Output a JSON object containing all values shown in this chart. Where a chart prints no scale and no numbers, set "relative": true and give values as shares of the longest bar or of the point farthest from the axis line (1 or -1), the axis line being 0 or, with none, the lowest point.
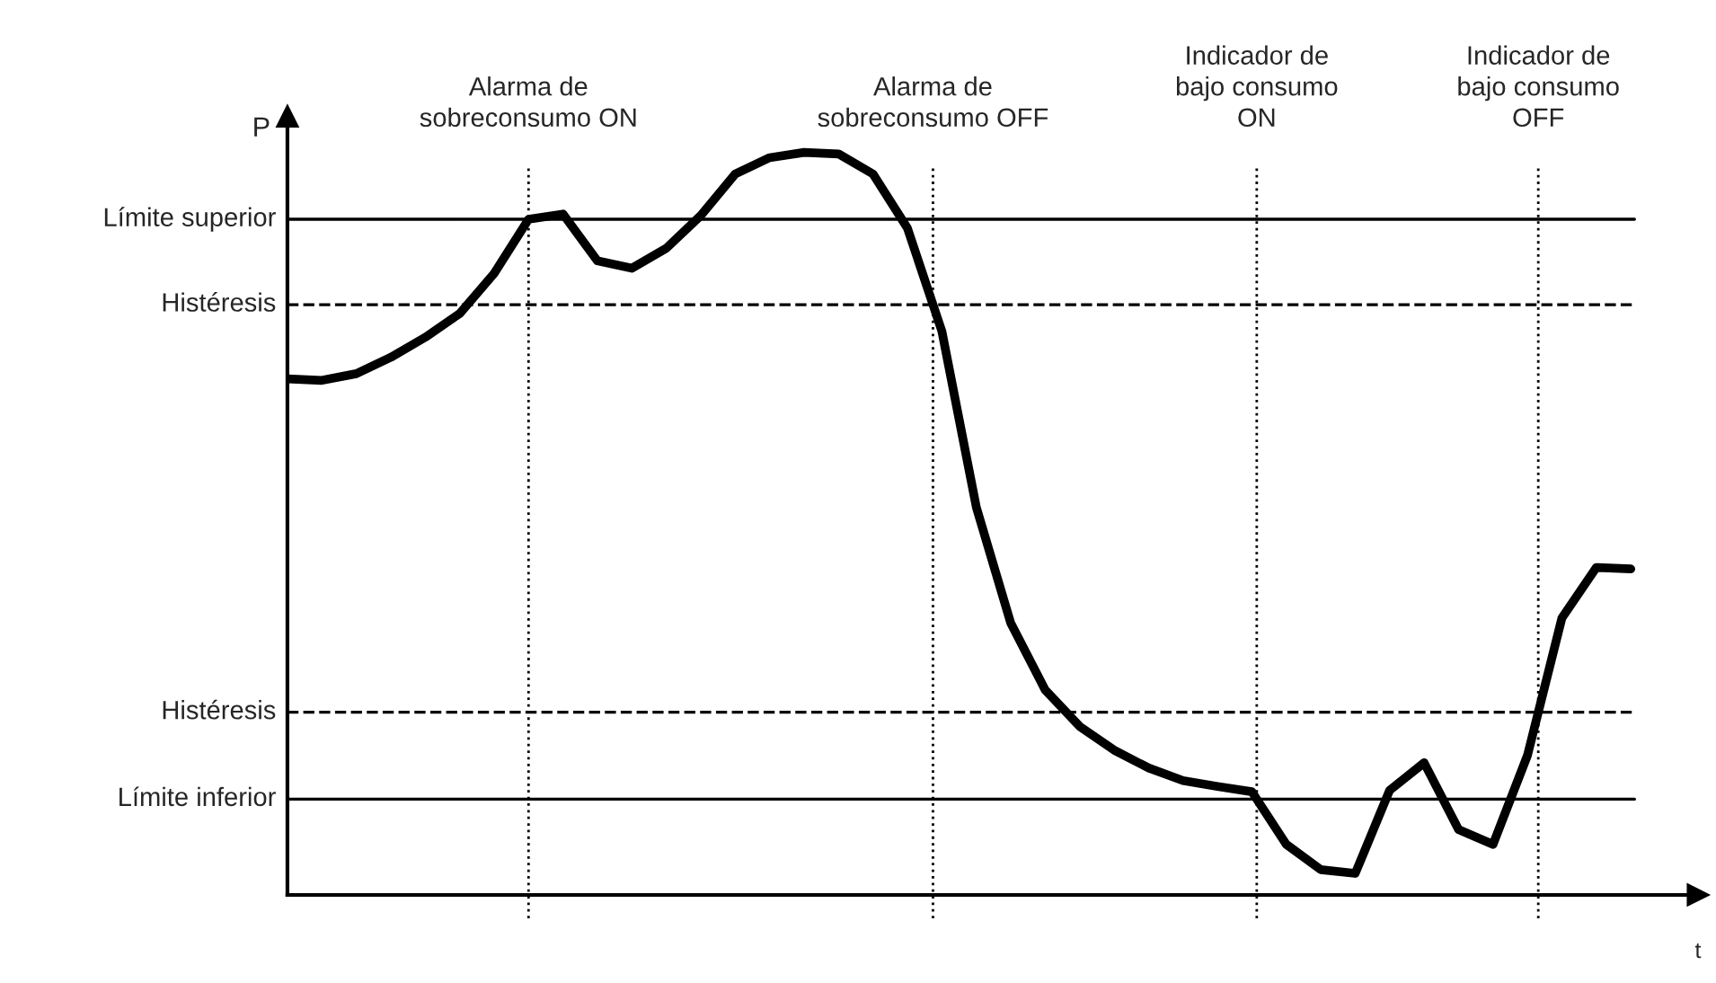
{
  "chart_data": {
    "type": "line",
    "relative": true,
    "xlabel": "t",
    "ylabel": "P",
    "categories": [
      null,
      null,
      null,
      null,
      null,
      null,
      null,
      null,
      null,
      null,
      null,
      null,
      null,
      null,
      null,
      null,
      null,
      null,
      null,
      null,
      null,
      null,
      null,
      null,
      null,
      null,
      null,
      null,
      null,
      null,
      null,
      null,
      null,
      null,
      null,
      null,
      null,
      null,
      null,
      null
    ],
    "series": [
      {
        "color": "#000000",
        "values": [
          0.695,
          0.693,
          0.702,
          0.724,
          0.751,
          0.783,
          0.837,
          0.91,
          0.917,
          0.854,
          0.844,
          0.871,
          0.915,
          0.971,
          0.993,
          1.0,
          0.998,
          0.971,
          0.898,
          0.759,
          0.522,
          0.366,
          0.276,
          0.227,
          0.195,
          0.171,
          0.154,
          0.146,
          0.139,
          0.068,
          0.034,
          0.029,
          0.141,
          0.178,
          0.088,
          0.068,
          0.188,
          0.373,
          0.441,
          0.439
        ]
      }
    ],
    "ref_lines": [
      {
        "axis": "y",
        "value": 0.91,
        "label": "Límite superior",
        "color": "#000000",
        "line_style": "solid"
      },
      {
        "axis": "y",
        "value": 0.795,
        "label": "Histéresis",
        "color": "#000000",
        "line_style": "dashed"
      },
      {
        "axis": "y",
        "value": 0.246,
        "label": "Histéresis",
        "color": "#000000",
        "line_style": "dashed"
      },
      {
        "axis": "y",
        "value": 0.129,
        "label": "Límite inferior",
        "color": "#000000",
        "line_style": "solid"
      }
    ],
    "annotations": [
      "Alarma de\nsobreconsumo ON",
      "Alarma de\nsobreconsumo OFF",
      "Indicador de\nbajo consumo\nON",
      "Indicador de\nbajo consumo\nOFF"
    ],
    "legend": false,
    "marker": "none",
    "line_style": "solid"
  }
}
